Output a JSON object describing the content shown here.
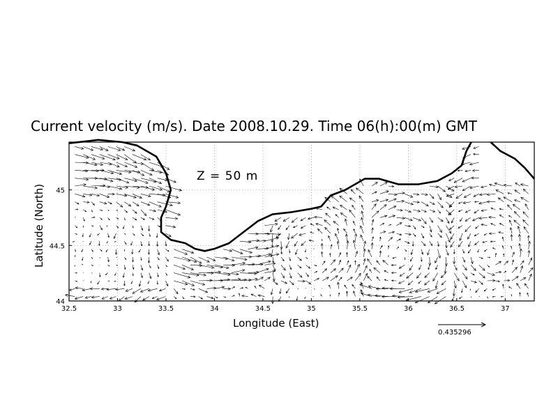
{
  "title": "Current velocity (m/s). Date 2008.10.29. Time 06(h):00(m) GMT",
  "depth_label": "Z = 50 m",
  "x_axis": {
    "label": "Longitude (East)",
    "ticks": [
      "32.5",
      "33",
      "33.5",
      "34",
      "34.5",
      "35",
      "35.5",
      "36",
      "36.5",
      "37"
    ],
    "range": [
      32.5,
      37.3
    ]
  },
  "y_axis": {
    "label": "Latitude (North)",
    "ticks": [
      "44",
      "44.5",
      "45"
    ],
    "range": [
      44.0,
      45.43
    ]
  },
  "reference_vector": {
    "value": "0.435296"
  },
  "chart_data": {
    "type": "vector_field",
    "xlabel": "Longitude (East)",
    "ylabel": "Latitude (North)",
    "xlim": [
      32.5,
      37.3
    ],
    "ylim": [
      44.0,
      45.43
    ],
    "grid": true,
    "reference_speed": 0.435296,
    "coastline": [
      [
        32.5,
        45.42
      ],
      [
        32.8,
        45.45
      ],
      [
        33.05,
        45.43
      ],
      [
        33.2,
        45.4
      ],
      [
        33.4,
        45.3
      ],
      [
        33.5,
        45.15
      ],
      [
        33.55,
        45.0
      ],
      [
        33.5,
        44.85
      ],
      [
        33.45,
        44.75
      ],
      [
        33.45,
        44.62
      ],
      [
        33.55,
        44.55
      ],
      [
        33.7,
        44.52
      ],
      [
        33.8,
        44.47
      ],
      [
        33.9,
        44.45
      ],
      [
        34.0,
        44.47
      ],
      [
        34.15,
        44.52
      ],
      [
        34.3,
        44.62
      ],
      [
        34.45,
        44.72
      ],
      [
        34.6,
        44.78
      ],
      [
        34.8,
        44.8
      ],
      [
        35.0,
        44.83
      ],
      [
        35.1,
        44.85
      ],
      [
        35.2,
        44.95
      ],
      [
        35.35,
        45.0
      ],
      [
        35.45,
        45.05
      ],
      [
        35.55,
        45.1
      ],
      [
        35.7,
        45.1
      ],
      [
        35.9,
        45.05
      ],
      [
        36.1,
        45.05
      ],
      [
        36.3,
        45.08
      ],
      [
        36.45,
        45.15
      ],
      [
        36.55,
        45.22
      ],
      [
        36.6,
        45.35
      ],
      [
        36.65,
        45.43
      ]
    ],
    "coastline_north": [
      [
        36.85,
        45.43
      ],
      [
        36.95,
        45.35
      ],
      [
        37.1,
        45.28
      ],
      [
        37.2,
        45.2
      ],
      [
        37.3,
        45.1
      ]
    ]
  }
}
